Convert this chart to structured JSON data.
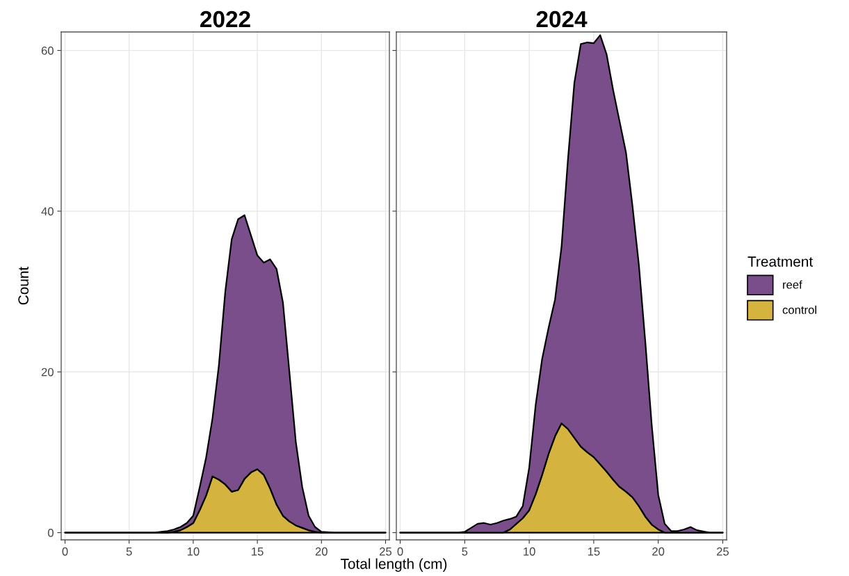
{
  "chart_data": [
    {
      "type": "area",
      "title": "2022",
      "xlabel": "Total length (cm)",
      "ylabel": "Count",
      "stacked": true,
      "legend_title": "Treatment",
      "legend": "right",
      "x": [
        0,
        7,
        7.5,
        8,
        8.5,
        9,
        9.5,
        10,
        10.5,
        11,
        11.5,
        12,
        12.5,
        13,
        13.5,
        14,
        14.5,
        15,
        15.5,
        16,
        16.5,
        17,
        17.5,
        18,
        18.5,
        19,
        19.5,
        20,
        21,
        25
      ],
      "series": [
        {
          "name": "control",
          "color": "#d4b33e",
          "values": [
            0,
            0,
            0,
            0,
            0.1,
            0.3,
            0.7,
            1.2,
            2.8,
            4.6,
            7.0,
            6.6,
            6.0,
            5.1,
            5.3,
            6.7,
            7.5,
            7.9,
            7.2,
            5.5,
            3.5,
            2.1,
            1.4,
            0.9,
            0.6,
            0.3,
            0.1,
            0,
            0,
            0
          ]
        },
        {
          "name": "reef",
          "color": "#7a4e8a",
          "values": [
            0,
            0,
            0.1,
            0.2,
            0.3,
            0.4,
            0.5,
            0.9,
            2.8,
            4.7,
            7.2,
            14.2,
            24.0,
            31.4,
            33.7,
            32.8,
            29.5,
            26.6,
            26.4,
            28.5,
            29.3,
            26.5,
            18.6,
            10.4,
            5.1,
            1.8,
            0.6,
            0.1,
            0,
            0
          ]
        }
      ],
      "xlim": [
        -0.3,
        25.3
      ],
      "ylim": [
        -0.9,
        62.3
      ],
      "xticks": [
        0,
        5,
        10,
        15,
        20,
        25
      ],
      "yticks": [
        0,
        20,
        40,
        60
      ],
      "grid": true
    },
    {
      "type": "area",
      "title": "2024",
      "stacked": true,
      "tick_labels": "x",
      "x": [
        0,
        4.5,
        5,
        5.5,
        6,
        6.5,
        7,
        7.5,
        8,
        8.5,
        9,
        9.5,
        10,
        10.5,
        11,
        11.5,
        12,
        12.5,
        13,
        13.5,
        14,
        14.5,
        15,
        15.5,
        16,
        16.5,
        17,
        17.5,
        18,
        18.5,
        19,
        19.5,
        20,
        20.5,
        21,
        21.5,
        22,
        22.5,
        23,
        24,
        25
      ],
      "series": [
        {
          "color": "#d4b33e",
          "values": [
            0,
            0,
            0,
            0,
            0,
            0,
            0,
            0,
            0,
            0.4,
            1.1,
            1.8,
            2.8,
            4.8,
            7.2,
            9.8,
            12.0,
            13.6,
            12.9,
            11.8,
            10.7,
            10.0,
            9.4,
            8.5,
            7.6,
            6.6,
            5.7,
            5.1,
            4.4,
            3.3,
            2.0,
            1.0,
            0.4,
            0,
            0,
            0,
            0,
            0,
            0,
            0,
            0
          ]
        },
        {
          "color": "#7a4e8a",
          "values": [
            0,
            0,
            0.1,
            0.6,
            1.1,
            1.2,
            1.0,
            1.2,
            1.5,
            1.3,
            0.9,
            1.5,
            5.3,
            11.1,
            14.4,
            15.7,
            17.0,
            21.9,
            33.5,
            44.2,
            50.1,
            51.0,
            51.5,
            53.4,
            51.9,
            48.5,
            45.5,
            42.2,
            36.3,
            30.0,
            21.7,
            12.3,
            4.3,
            1.1,
            0.2,
            0.2,
            0.4,
            0.7,
            0.3,
            0,
            0
          ]
        }
      ],
      "xlim": [
        -0.3,
        25.3
      ],
      "ylim": [
        -0.9,
        62.3
      ],
      "xticks": [
        0,
        5,
        10,
        15,
        20,
        25
      ],
      "yticks": [
        0,
        20,
        40,
        60
      ],
      "grid": true
    }
  ]
}
